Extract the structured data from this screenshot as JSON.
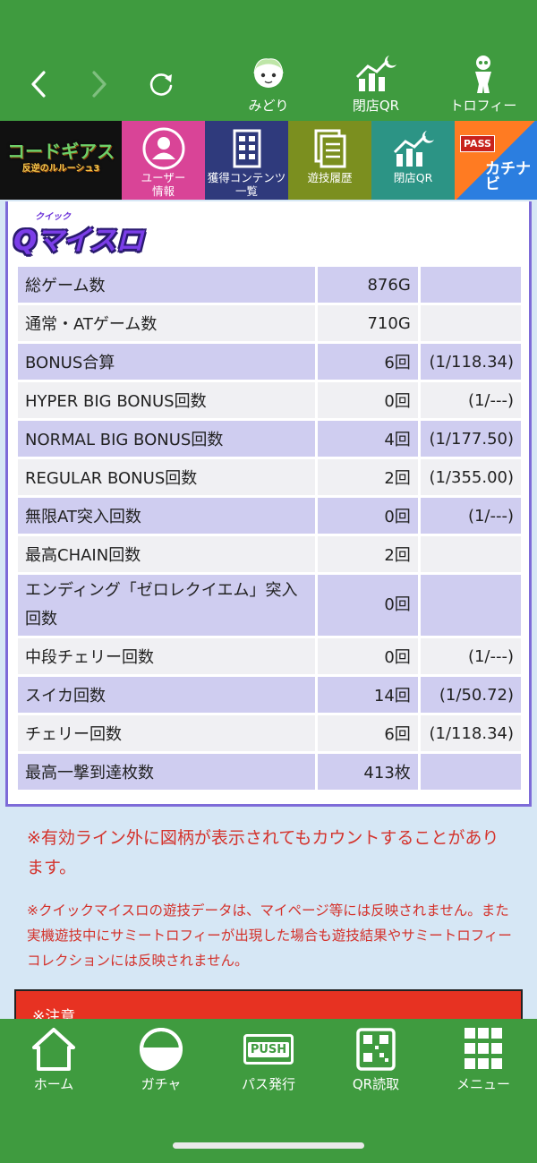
{
  "topbar": {
    "icons": [
      {
        "label": "みどり",
        "icon": "character-icon"
      },
      {
        "label": "閉店QR",
        "icon": "chart-moon-icon"
      },
      {
        "label": "トロフィー",
        "icon": "trophy-figure-icon"
      }
    ]
  },
  "strip": {
    "banner": {
      "title": "コードギアス",
      "sub": "反逆のルルーシュ3"
    },
    "tiles": [
      {
        "label": "ユーザー\n情報",
        "color": "#d94497"
      },
      {
        "label": "獲得コンテンツ\n一覧",
        "color": "#2f3a7c"
      },
      {
        "label": "遊技履歴",
        "color": "#7b8f1f"
      },
      {
        "label": "閉店QR",
        "color": "#2c9485"
      }
    ],
    "pass": {
      "badge": "PASS",
      "text": "カチナビ"
    }
  },
  "panel": {
    "logo_small": "クイック",
    "logo": "Qマイスロ",
    "rows": [
      {
        "label": "総ゲーム数",
        "value": "876G",
        "rate": ""
      },
      {
        "label": "通常・ATゲーム数",
        "value": "710G",
        "rate": ""
      },
      {
        "label": "BONUS合算",
        "value": "6回",
        "rate": "(1/118.34)"
      },
      {
        "label": "HYPER BIG BONUS回数",
        "value": "0回",
        "rate": "(1/---)"
      },
      {
        "label": "NORMAL BIG BONUS回数",
        "value": "4回",
        "rate": "(1/177.50)"
      },
      {
        "label": "REGULAR BONUS回数",
        "value": "2回",
        "rate": "(1/355.00)"
      },
      {
        "label": "無限AT突入回数",
        "value": "0回",
        "rate": "(1/---)"
      },
      {
        "label": "最高CHAIN回数",
        "value": "2回",
        "rate": ""
      },
      {
        "label": "エンディング「ゼロレクイエム」突入回数",
        "value": "0回",
        "rate": ""
      },
      {
        "label": "中段チェリー回数",
        "value": "0回",
        "rate": "(1/---)"
      },
      {
        "label": "スイカ回数",
        "value": "14回",
        "rate": "(1/50.72)"
      },
      {
        "label": "チェリー回数",
        "value": "6回",
        "rate": "(1/118.34)"
      },
      {
        "label": "最高一撃到達枚数",
        "value": "413枚",
        "rate": ""
      }
    ]
  },
  "notes": {
    "note1": "※有効ライン外に図柄が表示されてもカウントすることがあります。",
    "note2": "※クイックマイスロの遊技データは、マイページ等には反映されません。また実機遊技中にサミートロフィーが出現した場合も遊技結果やサミートロフィーコレクションには反映されません。",
    "warning": "※注意"
  },
  "bottombar": {
    "tabs": [
      {
        "label": "ホーム",
        "icon": "home-icon"
      },
      {
        "label": "ガチャ",
        "icon": "gacha-icon"
      },
      {
        "label": "パス発行",
        "icon": "push-pass-icon"
      },
      {
        "label": "QR読取",
        "icon": "qr-scan-icon"
      },
      {
        "label": "メニュー",
        "icon": "menu-grid-icon"
      }
    ],
    "push_text": "PUSH"
  }
}
